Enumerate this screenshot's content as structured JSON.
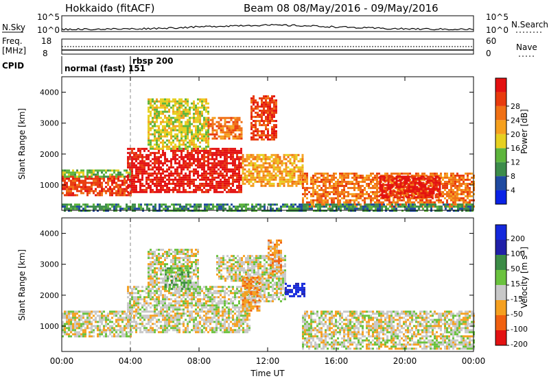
{
  "header": {
    "station": "Hokkaido (fitACF)",
    "beam": "Beam 08",
    "date_range": "08/May/2016 - 09/May/2016"
  },
  "strips": {
    "nsky": {
      "label": "N.Sky",
      "left_ticks": [
        "10^5",
        "10^0"
      ],
      "right_ticks": [
        "10^5",
        "10^0"
      ],
      "right_label": "N.Search"
    },
    "freq": {
      "label_line1": "Freq.",
      "label_line2": "[MHz]",
      "left_ticks": [
        "18",
        "8"
      ],
      "right_ticks": [
        "60",
        "0"
      ],
      "right_label": "Nave"
    },
    "cpid": {
      "label": "CPID",
      "mode1": "normal (fast) 151",
      "mode2": "rbsp 200"
    }
  },
  "colors": {
    "power": [
      "#0a22e6",
      "#1f4aa0",
      "#3c8c4a",
      "#5db53c",
      "#e6d020",
      "#f5a01e",
      "#f07014",
      "#e83a0c",
      "#e31010"
    ],
    "velocity": [
      "#e31212",
      "#f06010",
      "#f5a020",
      "#c8c8c8",
      "#6ac23e",
      "#3c8c46",
      "#2020a8",
      "#1428dc"
    ],
    "ground_scatter": "#c8c8c8"
  },
  "chart_data": [
    {
      "type": "heatmap",
      "name": "power",
      "xlabel": "",
      "ylabel": "Slant Range [km]",
      "xlim_hours": [
        0,
        24
      ],
      "ylim_km": [
        180,
        4500
      ],
      "y_ticks": [
        "1000",
        "2000",
        "3000",
        "4000"
      ],
      "x_ticks": [
        "00:00",
        "04:00",
        "08:00",
        "12:00",
        "16:00",
        "20:00",
        "00:00"
      ],
      "colorbar_label": "Power [dB]",
      "colorbar_ticks": [
        "4",
        "8",
        "12",
        "16",
        "20",
        "24",
        "28"
      ],
      "mode_change_time_hours": 3.9,
      "regions": [
        {
          "t": [
            0.0,
            4.0
          ],
          "r": [
            700,
            1300
          ],
          "level": 7
        },
        {
          "t": [
            0.0,
            4.0
          ],
          "r": [
            1300,
            1500
          ],
          "level": 3
        },
        {
          "t": [
            3.8,
            10.5
          ],
          "r": [
            800,
            2200
          ],
          "level": 8
        },
        {
          "t": [
            5.0,
            8.5
          ],
          "r": [
            2200,
            3800
          ],
          "level": 4
        },
        {
          "t": [
            8.5,
            10.5
          ],
          "r": [
            2500,
            3200
          ],
          "level": 6
        },
        {
          "t": [
            10.5,
            14.0
          ],
          "r": [
            1000,
            2000
          ],
          "level": 5
        },
        {
          "t": [
            11.0,
            12.5
          ],
          "r": [
            2500,
            3900
          ],
          "level": 7
        },
        {
          "t": [
            14.0,
            24.0
          ],
          "r": [
            300,
            1400
          ],
          "level": 6
        },
        {
          "t": [
            18.5,
            22.0
          ],
          "r": [
            600,
            1300
          ],
          "level": 8
        },
        {
          "t": [
            0.0,
            24.0
          ],
          "r": [
            200,
            400
          ],
          "level": 2
        }
      ]
    },
    {
      "type": "heatmap",
      "name": "velocity",
      "xlabel": "Time UT",
      "ylabel": "Slant Range [km]",
      "xlim_hours": [
        0,
        24
      ],
      "ylim_km": [
        180,
        4500
      ],
      "y_ticks": [
        "1000",
        "2000",
        "3000",
        "4000"
      ],
      "x_ticks": [
        "00:00",
        "04:00",
        "08:00",
        "12:00",
        "16:00",
        "20:00",
        "00:00"
      ],
      "colorbar_label": "Velocity [m s^-1]",
      "colorbar_ticks": [
        "200",
        "100",
        "50",
        "15",
        "-15",
        "-50",
        "-100",
        "-200"
      ],
      "mode_change_time_hours": 3.9,
      "regions": [
        {
          "t": [
            0.0,
            4.0
          ],
          "r": [
            700,
            1500
          ],
          "level": 3
        },
        {
          "t": [
            3.8,
            11.0
          ],
          "r": [
            800,
            2300
          ],
          "level": 3
        },
        {
          "t": [
            5.0,
            8.0
          ],
          "r": [
            2300,
            3500
          ],
          "level": 3
        },
        {
          "t": [
            9.0,
            11.0
          ],
          "r": [
            2500,
            3300
          ],
          "level": 3
        },
        {
          "t": [
            10.8,
            13.0
          ],
          "r": [
            1800,
            3300
          ],
          "level": 3
        },
        {
          "t": [
            13.0,
            14.2
          ],
          "r": [
            2000,
            2400
          ],
          "level": 7
        },
        {
          "t": [
            14.0,
            24.0
          ],
          "r": [
            300,
            1500
          ],
          "level": 3
        },
        {
          "t": [
            6.0,
            7.5
          ],
          "r": [
            2200,
            2900
          ],
          "level": 4
        },
        {
          "t": [
            10.5,
            11.5
          ],
          "r": [
            1500,
            2600
          ],
          "level": 2
        },
        {
          "t": [
            12.0,
            12.8
          ],
          "r": [
            2600,
            3800
          ],
          "level": 2
        }
      ]
    }
  ],
  "axis": {
    "time_label": "Time UT"
  }
}
